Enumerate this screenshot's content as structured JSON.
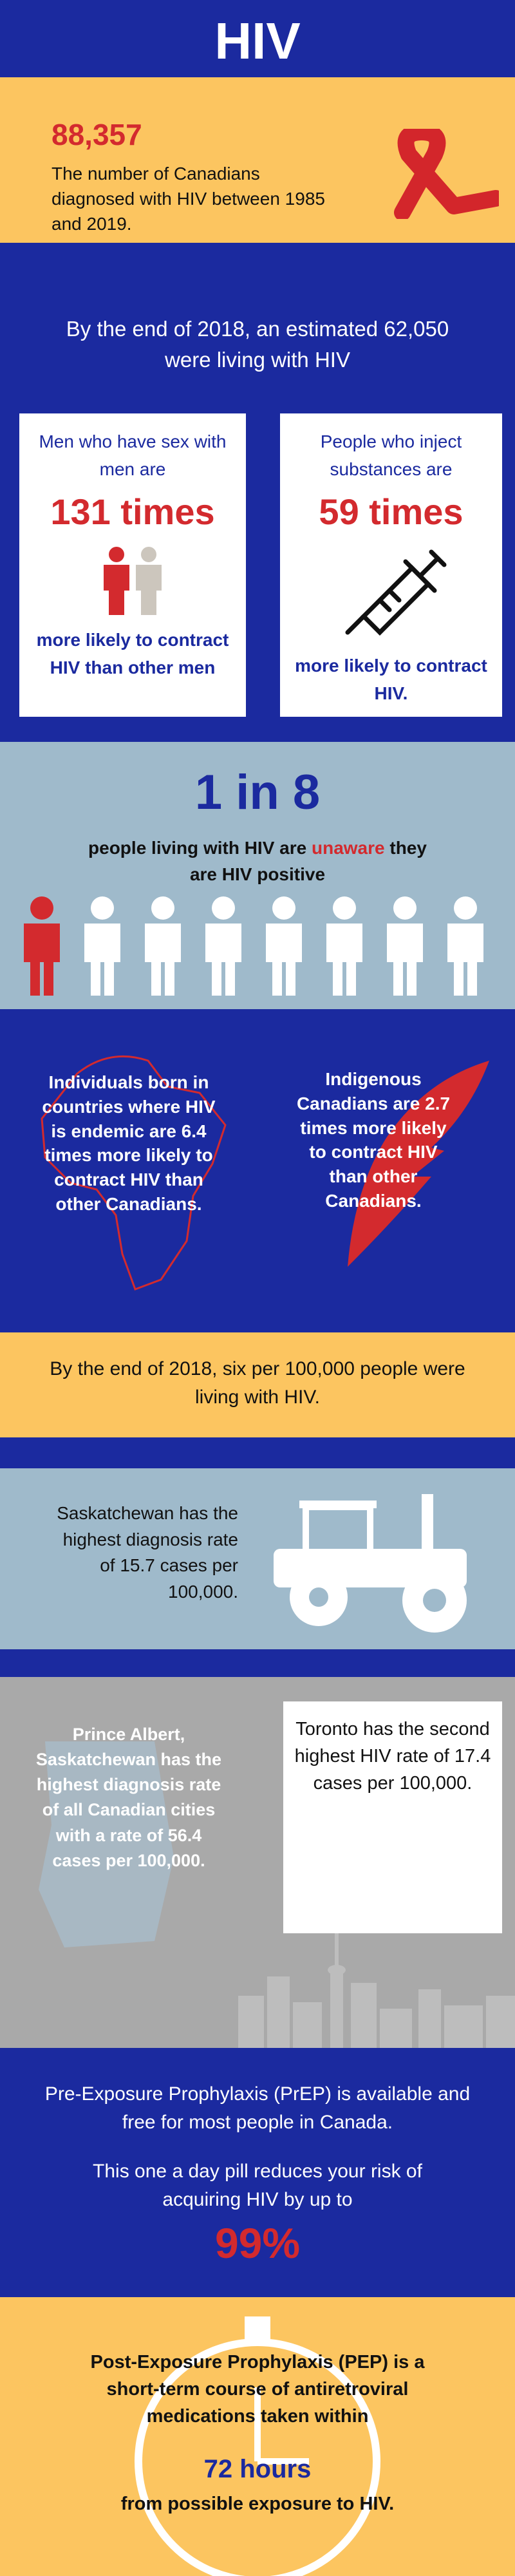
{
  "header": {
    "title": "HIV"
  },
  "canadians_diagnosed": {
    "number": "88,357",
    "text": "The number of Canadians diagnosed with HIV between 1985 and 2019."
  },
  "living_estimate": {
    "text": "By the end of 2018, an estimated 62,050 were living with HIV"
  },
  "cards": [
    {
      "lead": "Men who have sex with men are",
      "figure": "131 times",
      "tail": "more likely to contract HIV than other men"
    },
    {
      "lead": "People who inject substances are",
      "figure": "59 times",
      "tail": "more likely to contract HIV."
    }
  ],
  "unaware": {
    "figure": "1 in 8",
    "text_parts": [
      "people living with HIV are ",
      "unaware",
      " they are HIV positive"
    ]
  },
  "groups": [
    {
      "text": "Individuals born in countries where HIV is endemic are 6.4 times more likely to contract HIV than other Canadians."
    },
    {
      "text": "Indigenous Canadians are 2.7 times more likely to contract HIV than other Canadians."
    }
  ],
  "rate_2018": {
    "text": "By the end of 2018, six per 100,000 people were living with HIV."
  },
  "saskatchewan": {
    "text": "Saskatchewan has the highest diagnosis rate of 15.7 cases per 100,000."
  },
  "cities": {
    "prince_albert": "Prince Albert, Saskatchewan has the highest diagnosis rate of all Canadian cities with a rate of 56.4 cases per 100,000.",
    "toronto": "Toronto has the second highest HIV rate of 17.4 cases per 100,000."
  },
  "prep": {
    "intro": "Pre-Exposure Prophylaxis (PrEP) is available and free for most people in Canada.",
    "reduction": "This one a day pill reduces your risk of acquiring HIV by up to",
    "figure": "99%"
  },
  "pep": {
    "text_before": "Post-Exposure Prophylaxis (PEP) is a short-term course of antiretroviral medications taken within",
    "figure": "72 hours",
    "text_after": "from possible exposure to HIV."
  }
}
